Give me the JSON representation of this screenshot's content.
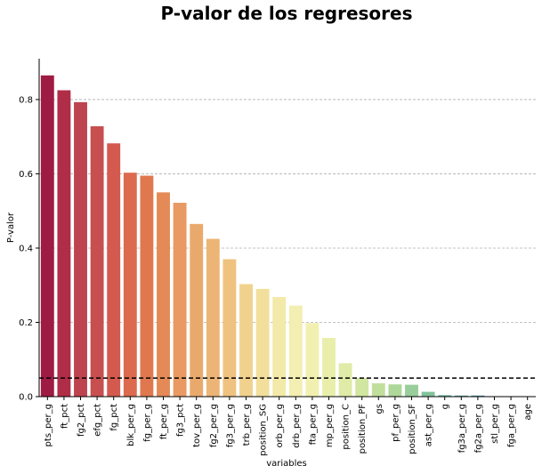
{
  "chart_data": {
    "type": "bar",
    "title": "P-valor de los regresores",
    "xlabel": "variables",
    "ylabel": "P-valor",
    "ylim": [
      0,
      0.91
    ],
    "yticks": [
      "0.0",
      "0.2",
      "0.4",
      "0.6",
      "0.8"
    ],
    "ytick_values": [
      0,
      0.2,
      0.4,
      0.6,
      0.8
    ],
    "grid": "horizontal dashed",
    "threshold_line": 0.05,
    "categories": [
      "pts_per_g",
      "ft_pct",
      "fg2_pct",
      "efg_pct",
      "fg_pct",
      "blk_per_g",
      "fg_per_g",
      "ft_per_g",
      "fg3_pct",
      "tov_per_g",
      "fg2_per_g",
      "fg3_per_g",
      "trb_per_g",
      "position_SG",
      "orb_per_g",
      "drb_per_g",
      "fta_per_g",
      "mp_per_g",
      "position_C",
      "position_PF",
      "gs",
      "pf_per_g",
      "position_SF",
      "ast_per_g",
      "g",
      "fg3a_per_g",
      "fg2a_per_g",
      "stl_per_g",
      "fga_per_g",
      "age"
    ],
    "values": [
      0.865,
      0.825,
      0.793,
      0.728,
      0.682,
      0.603,
      0.595,
      0.55,
      0.522,
      0.465,
      0.425,
      0.37,
      0.303,
      0.29,
      0.268,
      0.245,
      0.198,
      0.158,
      0.09,
      0.05,
      0.036,
      0.033,
      0.032,
      0.013,
      0.004,
      0.003,
      0.003,
      0.001,
      0.001,
      0.0
    ],
    "colors": [
      "#9e1b44",
      "#b02d48",
      "#bd444e",
      "#c74f50",
      "#d45a4f",
      "#dc6a4f",
      "#e0784f",
      "#e48a57",
      "#e89a62",
      "#eaa96c",
      "#ecb576",
      "#efc280",
      "#f1d18e",
      "#f2df9c",
      "#f3e9a8",
      "#f3eeb1",
      "#f1f0b0",
      "#e9efab",
      "#dfeba6",
      "#d1e6a0",
      "#c1df9c",
      "#aed79a",
      "#99ce9a",
      "#82c29b",
      "#6cb69e",
      "#5aa8a1",
      "#4c99a6",
      "#4789aa",
      "#4678ad",
      "#4a68ad"
    ]
  }
}
